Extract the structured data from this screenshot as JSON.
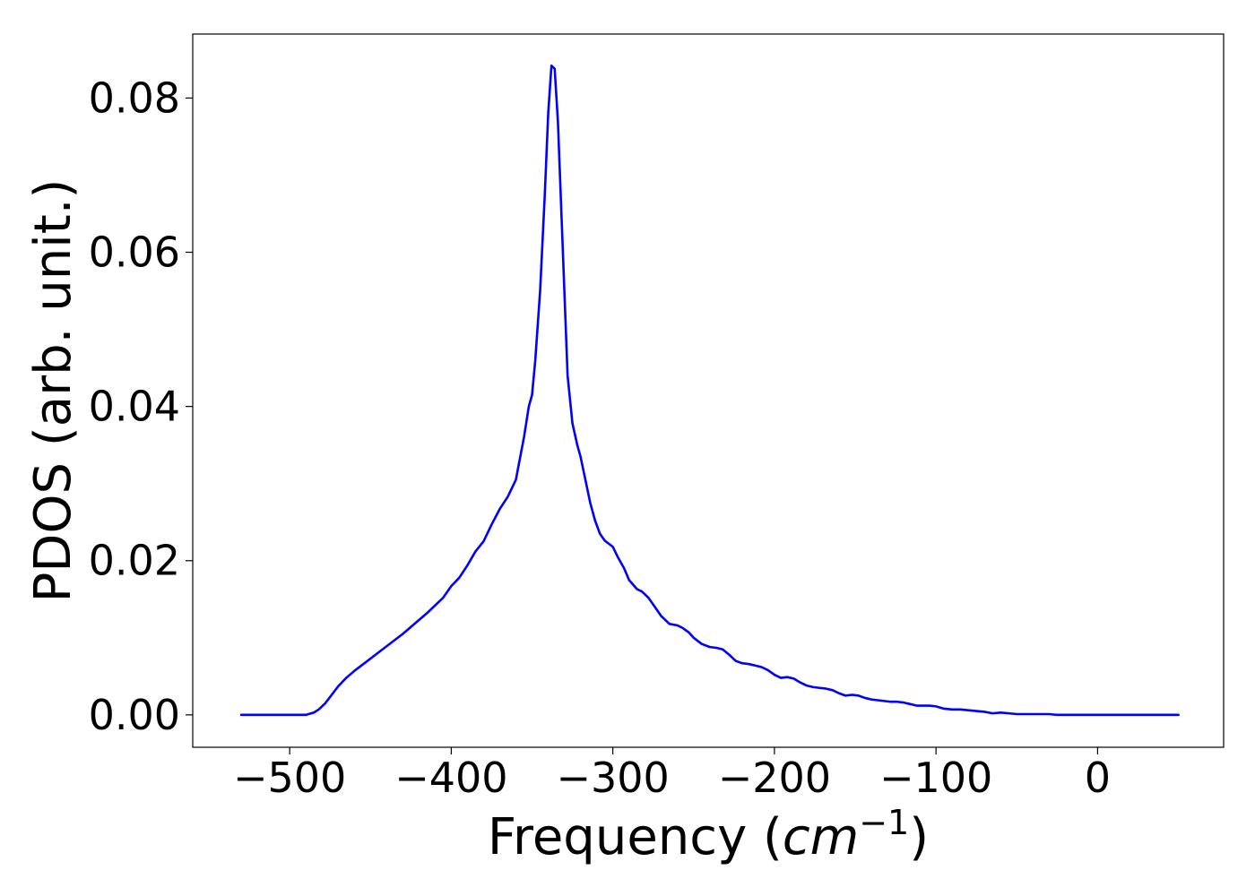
{
  "chart_data": {
    "type": "line",
    "title": "",
    "xlabel": "Frequency (",
    "xlabel_math": "cm",
    "xlabel_sup": "−1",
    "xlabel_close": ")",
    "ylabel": "PDOS (arb. unit.)",
    "xlim": [
      -560,
      78
    ],
    "ylim": [
      -0.0042,
      0.0883
    ],
    "xticks": [
      -500,
      -400,
      -300,
      -200,
      -100,
      0
    ],
    "xtick_labels": [
      "−500",
      "−400",
      "−300",
      "−200",
      "−100",
      "0"
    ],
    "yticks": [
      0.0,
      0.02,
      0.04,
      0.06,
      0.08
    ],
    "ytick_labels": [
      "0.00",
      "0.02",
      "0.04",
      "0.06",
      "0.08"
    ],
    "grid": false,
    "legend": "none",
    "series": [
      {
        "color": "#0000ff",
        "x": [
          -530,
          -520,
          -510,
          -500,
          -490,
          -485,
          -482,
          -478,
          -474,
          -470,
          -465,
          -460,
          -455,
          -450,
          -445,
          -440,
          -435,
          -430,
          -425,
          -420,
          -415,
          -410,
          -405,
          -400,
          -395,
          -390,
          -385,
          -380,
          -375,
          -370,
          -365,
          -360,
          -355,
          -352,
          -350,
          -348,
          -345,
          -342,
          -340,
          -338,
          -336,
          -334,
          -332,
          -330,
          -328,
          -325,
          -322,
          -320,
          -317,
          -314,
          -311,
          -308,
          -305,
          -300,
          -297,
          -293,
          -290,
          -285,
          -282,
          -278,
          -275,
          -270,
          -265,
          -260,
          -257,
          -253,
          -250,
          -245,
          -240,
          -236,
          -232,
          -228,
          -224,
          -220,
          -216,
          -212,
          -208,
          -204,
          -200,
          -196,
          -192,
          -188,
          -184,
          -180,
          -176,
          -172,
          -168,
          -164,
          -160,
          -156,
          -152,
          -148,
          -144,
          -140,
          -136,
          -132,
          -128,
          -124,
          -120,
          -116,
          -112,
          -108,
          -104,
          -100,
          -95,
          -90,
          -85,
          -80,
          -75,
          -70,
          -65,
          -60,
          -55,
          -50,
          -45,
          -40,
          -35,
          -30,
          -25,
          -20,
          -15,
          -10,
          -5,
          0,
          10,
          20,
          30,
          40,
          50
        ],
        "y": [
          0.0,
          0.0,
          0.0,
          0.0,
          0.0,
          0.0003,
          0.0007,
          0.0015,
          0.0026,
          0.0037,
          0.0048,
          0.0057,
          0.0065,
          0.0073,
          0.0081,
          0.0089,
          0.0097,
          0.0105,
          0.0114,
          0.0123,
          0.0132,
          0.0142,
          0.0152,
          0.0167,
          0.0178,
          0.0194,
          0.0212,
          0.0225,
          0.0247,
          0.0267,
          0.0283,
          0.0305,
          0.036,
          0.04,
          0.0415,
          0.046,
          0.055,
          0.068,
          0.078,
          0.0842,
          0.0838,
          0.077,
          0.066,
          0.055,
          0.044,
          0.0378,
          0.035,
          0.0335,
          0.0305,
          0.0275,
          0.0252,
          0.0235,
          0.0226,
          0.0218,
          0.0205,
          0.019,
          0.0175,
          0.0163,
          0.016,
          0.0152,
          0.0143,
          0.0128,
          0.0118,
          0.0116,
          0.0113,
          0.0107,
          0.01,
          0.0092,
          0.0088,
          0.0087,
          0.0085,
          0.0078,
          0.007,
          0.0067,
          0.0066,
          0.0064,
          0.0062,
          0.0058,
          0.0052,
          0.0048,
          0.0049,
          0.0047,
          0.0042,
          0.0038,
          0.0036,
          0.0035,
          0.0034,
          0.0032,
          0.0028,
          0.0025,
          0.0026,
          0.0025,
          0.0022,
          0.002,
          0.0019,
          0.0018,
          0.0017,
          0.0017,
          0.0016,
          0.0014,
          0.0012,
          0.0012,
          0.0012,
          0.0011,
          0.0008,
          0.0007,
          0.0007,
          0.0006,
          0.0005,
          0.0004,
          0.0002,
          0.0003,
          0.0002,
          0.0001,
          0.0001,
          0.0001,
          0.0001,
          0.0001,
          0.0,
          0.0,
          0.0,
          0.0,
          0.0,
          0.0,
          0.0,
          0.0,
          0.0,
          0.0,
          0.0
        ]
      }
    ]
  }
}
